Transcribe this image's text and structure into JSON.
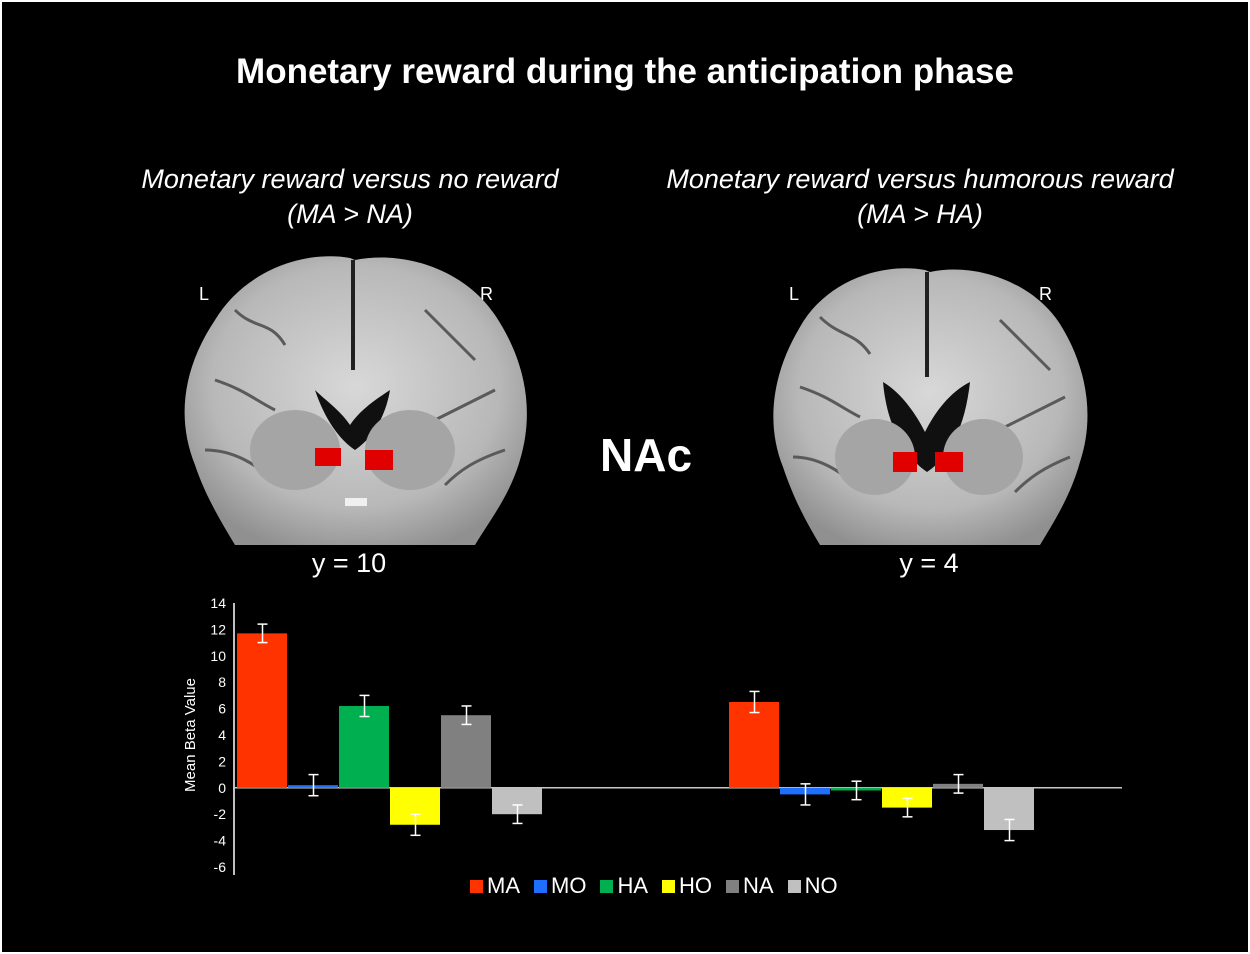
{
  "figure": {
    "title": "Monetary reward during the anticipation phase",
    "center_label": "NAc",
    "panels": [
      {
        "subtitle_line1": "Monetary reward versus no reward",
        "subtitle_line2": "(MA > NA)",
        "left_label": "L",
        "right_label": "R",
        "coordinate": "y = 10"
      },
      {
        "subtitle_line1": "Monetary reward versus humorous reward",
        "subtitle_line2": "(MA > HA)",
        "left_label": "L",
        "right_label": "R",
        "coordinate": "y = 4"
      }
    ]
  },
  "chart_data": {
    "type": "bar",
    "title": "",
    "xlabel": "",
    "ylabel": "Mean Beta Value",
    "ylim": [
      -6,
      14
    ],
    "yticks": [
      "14",
      "12",
      "10",
      "8",
      "6",
      "4",
      "2",
      "0",
      "-2",
      "-4",
      "-6"
    ],
    "grid": false,
    "legend_position": "bottom",
    "categories": [
      "MA > NA",
      "MA > HA"
    ],
    "series": [
      {
        "name": "MA",
        "color": "#ff3300",
        "values": [
          11.7,
          6.5
        ],
        "errors": [
          0.7,
          0.8
        ]
      },
      {
        "name": "MO",
        "color": "#1f6fff",
        "values": [
          0.2,
          -0.5
        ],
        "errors": [
          0.8,
          0.8
        ]
      },
      {
        "name": "HA",
        "color": "#00b050",
        "values": [
          6.2,
          -0.2
        ],
        "errors": [
          0.8,
          0.7
        ]
      },
      {
        "name": "HO",
        "color": "#ffff00",
        "values": [
          -2.8,
          -1.5
        ],
        "errors": [
          0.8,
          0.7
        ]
      },
      {
        "name": "NA",
        "color": "#808080",
        "values": [
          5.5,
          0.3
        ],
        "errors": [
          0.7,
          0.7
        ]
      },
      {
        "name": "NO",
        "color": "#c0c0c0",
        "values": [
          -2.0,
          -3.2
        ],
        "errors": [
          0.7,
          0.8
        ]
      }
    ]
  }
}
